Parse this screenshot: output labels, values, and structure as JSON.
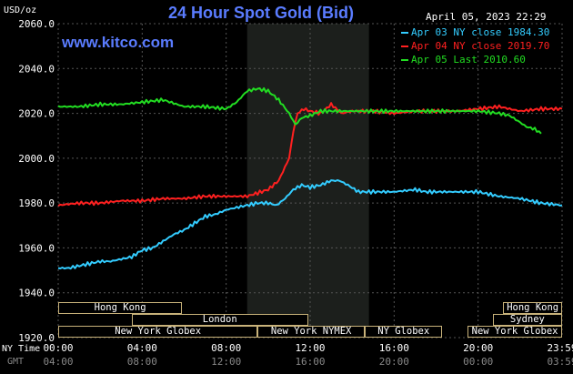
{
  "header": {
    "title": "24 Hour Spot Gold (Bid)",
    "site": "www.kitco.com",
    "unit": "USD/oz",
    "datetime": "April 05, 2023 22:29"
  },
  "legend": [
    {
      "label": "Apr 03 NY close 1984.30",
      "color": "#33ccff"
    },
    {
      "label": "Apr 04 NY close 2019.70",
      "color": "#ff2020"
    },
    {
      "label": "Apr 05 Last 2010.60",
      "color": "#22dd22"
    }
  ],
  "axis": {
    "y_ticks": [
      "2060.0",
      "2040.0",
      "2020.0",
      "2000.0",
      "1980.0",
      "1960.0",
      "1940.0",
      "1920.0"
    ],
    "x_ticks_ny": [
      "00:00",
      "04:00",
      "08:00",
      "12:00",
      "16:00",
      "20:00",
      "23:59"
    ],
    "x_ticks_gmt": [
      "04:00",
      "08:00",
      "12:00",
      "16:00",
      "20:00",
      "00:00",
      "03:59"
    ],
    "ny_label": "NY Time",
    "gmt_label": "GMT"
  },
  "sessions": [
    {
      "name": "Hong Kong",
      "row": 0,
      "start": 0.0,
      "end": 5.9
    },
    {
      "name": "London",
      "row": 1,
      "start": 3.5,
      "end": 11.9
    },
    {
      "name": "New York Globex",
      "row": 2,
      "start": 0.0,
      "end": 9.5
    },
    {
      "name": "New York NYMEX",
      "row": 2,
      "start": 9.5,
      "end": 14.6
    },
    {
      "name": "NY Globex",
      "row": 2,
      "start": 14.6,
      "end": 18.3
    },
    {
      "name": "Hong Kong",
      "row": 0,
      "start": 21.2,
      "end": 24.0
    },
    {
      "name": "Sydney",
      "row": 1,
      "start": 20.7,
      "end": 24.0
    },
    {
      "name": "New York Globex",
      "row": 2,
      "start": 19.5,
      "end": 24.0
    }
  ],
  "chart_data": {
    "type": "line",
    "title": "24 Hour Spot Gold (Bid)",
    "ylabel": "USD/oz",
    "ylim": [
      1920,
      2060
    ],
    "xlim": [
      0,
      24
    ],
    "highlight_range": [
      9,
      14.8
    ],
    "series": [
      {
        "name": "Apr 03 NY close 1984.30",
        "color": "#33ccff",
        "x": [
          0,
          0.5,
          1,
          1.5,
          2,
          2.5,
          3,
          3.5,
          4,
          4.5,
          5,
          5.5,
          6,
          6.5,
          7,
          7.5,
          8,
          8.5,
          9,
          9.5,
          10,
          10.4,
          10.8,
          11.2,
          11.6,
          12,
          12.5,
          13,
          13.4,
          13.8,
          14.3,
          15,
          16,
          17,
          17.5,
          18,
          19,
          20,
          20.5,
          21,
          22,
          23,
          24
        ],
        "values": [
          1951,
          1951,
          1952,
          1953,
          1954,
          1954,
          1955,
          1956,
          1959,
          1960,
          1963,
          1966,
          1968,
          1971,
          1974,
          1975,
          1977,
          1978,
          1979,
          1980,
          1980,
          1979,
          1982,
          1986,
          1988,
          1987,
          1988,
          1990,
          1990,
          1988,
          1985,
          1985,
          1985,
          1986,
          1985,
          1985,
          1985,
          1985,
          1984,
          1983,
          1982,
          1980,
          1979
        ]
      },
      {
        "name": "Apr 04 NY close 2019.70",
        "color": "#ff2020",
        "x": [
          0,
          1,
          2,
          3,
          4,
          5,
          6,
          7,
          8,
          9,
          10,
          10.5,
          11,
          11.2,
          11.4,
          11.7,
          12,
          12.5,
          13,
          13.5,
          14,
          15,
          16,
          17,
          18,
          19,
          20,
          21,
          22,
          23,
          24
        ],
        "values": [
          1979,
          1980,
          1980,
          1981,
          1981,
          1982,
          1982,
          1983,
          1983,
          1983,
          1986,
          1990,
          2000,
          2012,
          2020,
          2022,
          2021,
          2020,
          2024,
          2020,
          2021,
          2021,
          2020,
          2021,
          2021,
          2021,
          2022,
          2023,
          2021,
          2022,
          2022
        ]
      },
      {
        "name": "Apr 05 Last 2010.60",
        "color": "#22dd22",
        "x": [
          0,
          1,
          2,
          3,
          4,
          5,
          6,
          7,
          8,
          8.5,
          9,
          9.5,
          10,
          10.5,
          11,
          11.3,
          11.6,
          12,
          12.5,
          13,
          13.5,
          14,
          15,
          16,
          17,
          18,
          19,
          20,
          21,
          21.5,
          22,
          22.3,
          22.7,
          23
        ],
        "values": [
          2023,
          2023,
          2024,
          2024,
          2025,
          2026,
          2023,
          2023,
          2022,
          2025,
          2030,
          2031,
          2030,
          2026,
          2020,
          2015,
          2018,
          2019,
          2021,
          2021,
          2021,
          2021,
          2021,
          2021,
          2021,
          2021,
          2021,
          2021,
          2020,
          2019,
          2016,
          2014,
          2013,
          2011
        ]
      }
    ]
  }
}
